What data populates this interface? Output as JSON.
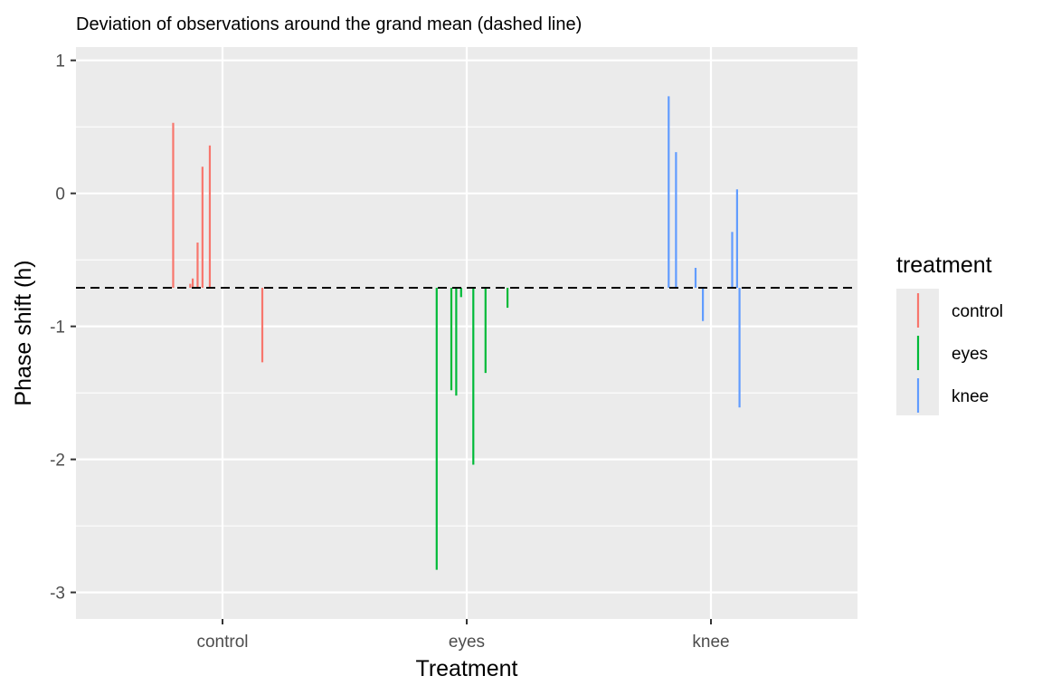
{
  "chart_data": {
    "type": "linerange",
    "title": "Deviation of observations around the grand mean (dashed line)",
    "xlabel": "Treatment",
    "ylabel": "Phase shift (h)",
    "categories": [
      "control",
      "eyes",
      "knee"
    ],
    "ylim": [
      -3.2,
      1.1
    ],
    "yticks": [
      -3,
      -2,
      -1,
      0,
      1
    ],
    "grand_mean": -0.71,
    "grid": true,
    "legend": {
      "title": "treatment",
      "position": "right",
      "entries": [
        "control",
        "eyes",
        "knee"
      ]
    },
    "series": [
      {
        "name": "control",
        "color": "#F8766D",
        "x": [
          0.798,
          0.868,
          0.878,
          0.898,
          0.918,
          0.948,
          1.163
        ],
        "y": [
          0.53,
          -0.68,
          -0.64,
          -0.37,
          0.2,
          0.36,
          -1.27
        ]
      },
      {
        "name": "eyes",
        "color": "#00BA38",
        "x": [
          1.877,
          1.937,
          1.957,
          1.977,
          2.027,
          2.077,
          2.167
        ],
        "y": [
          -2.83,
          -1.48,
          -1.52,
          -0.78,
          -2.04,
          -1.35,
          -0.86
        ]
      },
      {
        "name": "knee",
        "color": "#619CFF",
        "x": [
          2.827,
          2.857,
          2.937,
          2.967,
          3.087,
          3.107,
          3.117
        ],
        "y": [
          0.73,
          0.31,
          -0.56,
          -0.96,
          -0.29,
          0.03,
          -1.61
        ]
      }
    ]
  }
}
